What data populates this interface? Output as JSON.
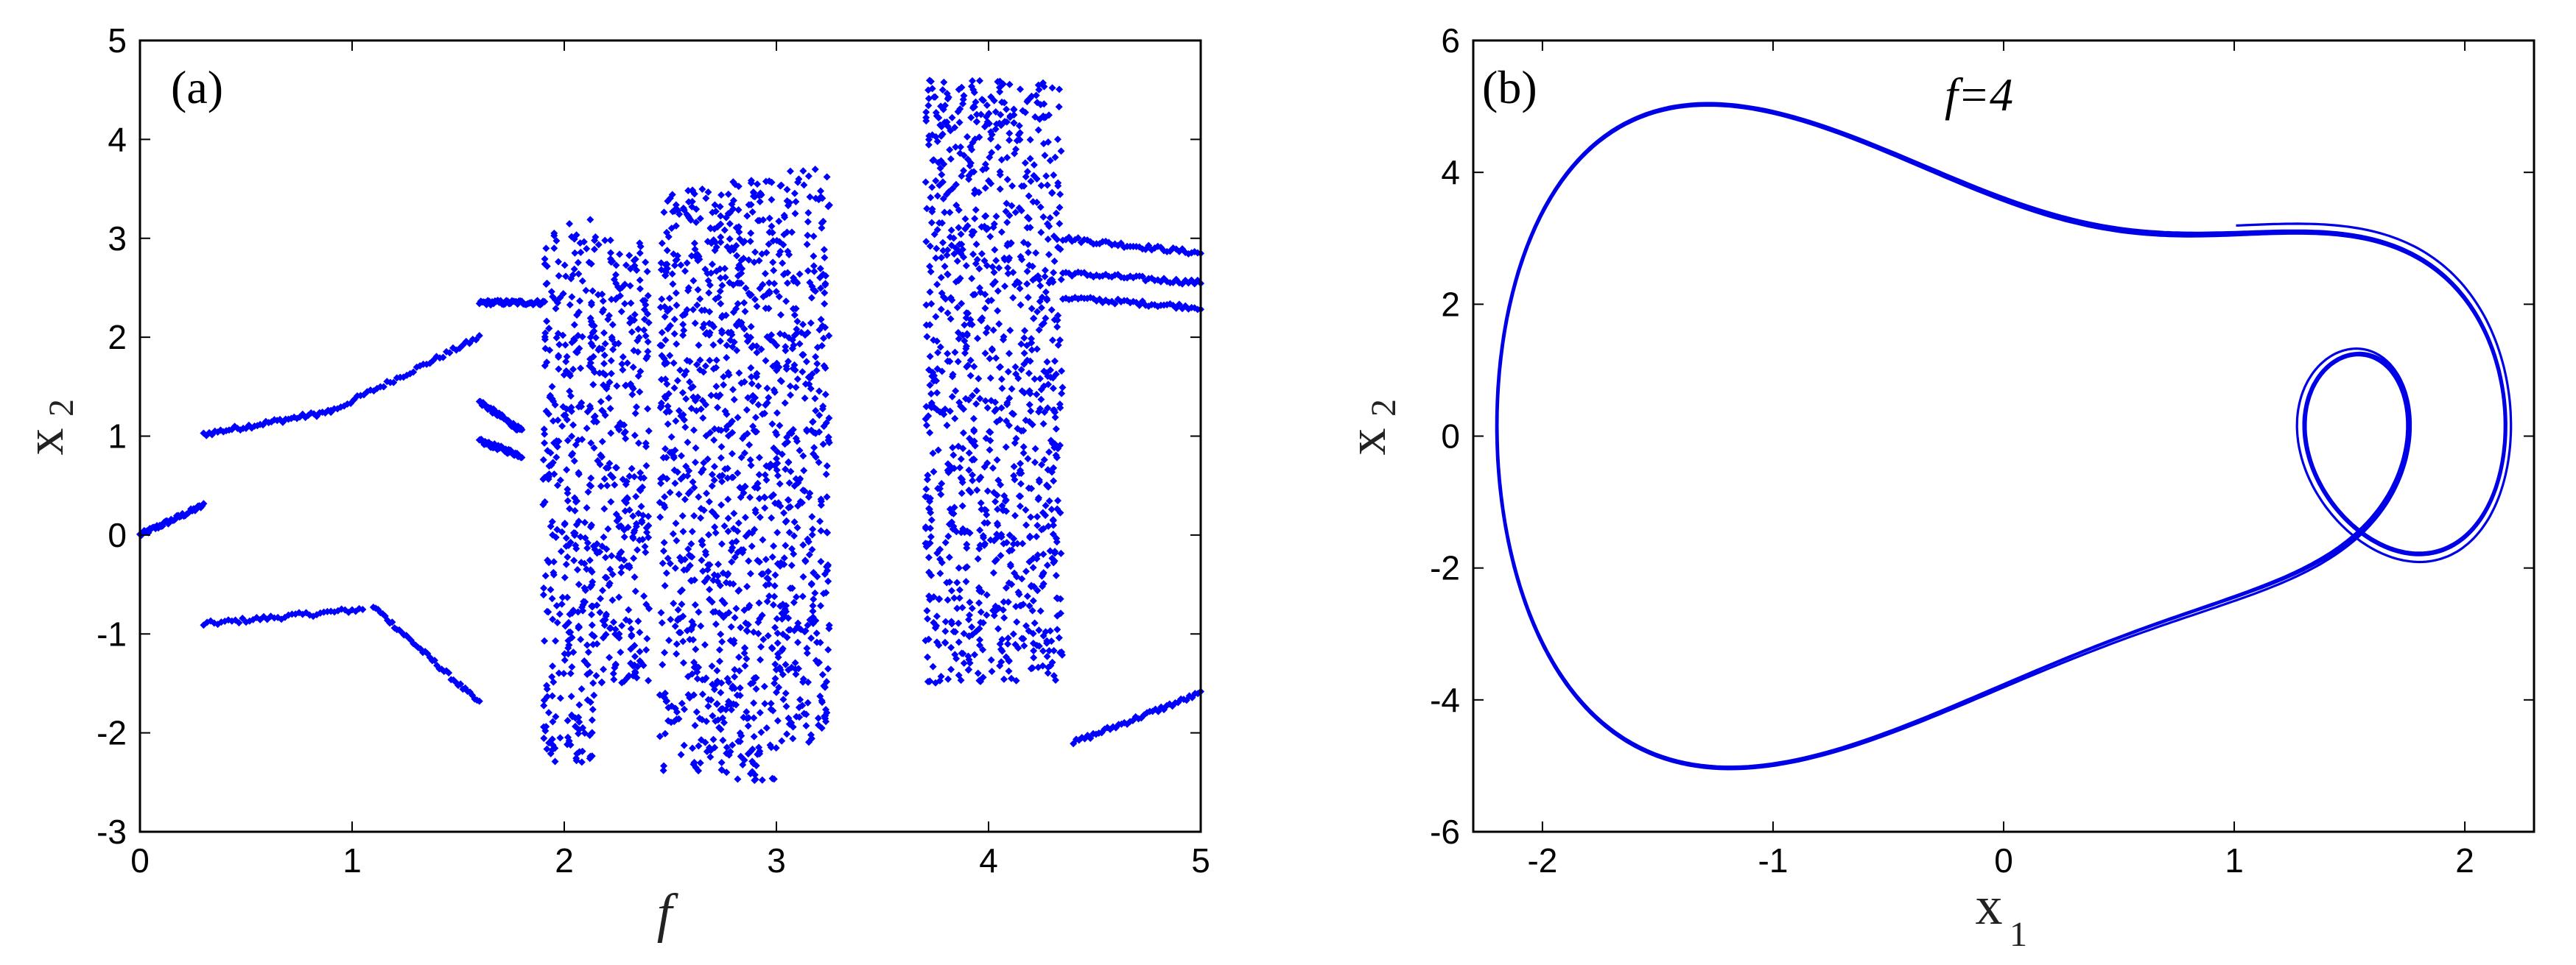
{
  "chart_data": [
    {
      "type": "scatter",
      "panel_label": "(a)",
      "xlabel": "f",
      "ylabel": "x",
      "ylabel_sub": "2",
      "xlim": [
        0,
        5
      ],
      "ylim": [
        -3,
        5
      ],
      "xticks": [
        "0",
        "1",
        "2",
        "3",
        "4",
        "5"
      ],
      "yticks": [
        "-3",
        "-2",
        "-1",
        "0",
        "1",
        "2",
        "3",
        "4",
        "5"
      ],
      "marker_color": "#0000ff",
      "branches": [
        {
          "x": [
            0.0,
            0.3
          ],
          "y": [
            0.0,
            0.3
          ]
        },
        {
          "x": [
            0.3,
            0.9
          ],
          "y": [
            1.02,
            1.25
          ]
        },
        {
          "x": [
            0.3,
            1.05
          ],
          "y": [
            -0.9,
            -0.75
          ]
        },
        {
          "x": [
            0.9,
            1.6
          ],
          "y": [
            1.25,
            2.0
          ]
        },
        {
          "x": [
            1.1,
            1.6
          ],
          "y": [
            -0.72,
            -1.7
          ]
        },
        {
          "x": [
            1.6,
            1.9
          ],
          "y": [
            2.35,
            2.35
          ]
        },
        {
          "x": [
            1.6,
            1.8
          ],
          "y": [
            1.35,
            1.05
          ]
        },
        {
          "x": [
            1.6,
            1.8
          ],
          "y": [
            0.95,
            0.8
          ]
        },
        {
          "x": [
            4.35,
            5.0
          ],
          "y": [
            3.0,
            2.85
          ]
        },
        {
          "x": [
            4.35,
            5.0
          ],
          "y": [
            2.65,
            2.55
          ]
        },
        {
          "x": [
            4.35,
            5.0
          ],
          "y": [
            2.4,
            2.3
          ]
        },
        {
          "x": [
            4.4,
            5.0
          ],
          "y": [
            -2.1,
            -1.6
          ]
        }
      ],
      "chaotic_bands": [
        {
          "x": [
            1.9,
            2.15
          ],
          "y": [
            -2.3,
            3.2
          ]
        },
        {
          "x": [
            2.15,
            2.4
          ],
          "y": [
            -1.5,
            3.0
          ]
        },
        {
          "x": [
            2.45,
            2.75
          ],
          "y": [
            -2.4,
            3.5
          ]
        },
        {
          "x": [
            2.75,
            3.0
          ],
          "y": [
            -2.5,
            3.6
          ]
        },
        {
          "x": [
            3.0,
            3.25
          ],
          "y": [
            -2.1,
            3.7
          ]
        },
        {
          "x": [
            3.7,
            4.35
          ],
          "y": [
            -1.5,
            4.6
          ]
        }
      ]
    },
    {
      "type": "line",
      "panel_label": "(b)",
      "annotation": "f=4",
      "xlabel": "x",
      "xlabel_sub": "1",
      "ylabel": "x",
      "ylabel_sub": "2",
      "xlim": [
        -2.3,
        2.3
      ],
      "ylim": [
        -6,
        6
      ],
      "xticks": [
        "-2",
        "-1",
        "0",
        "1",
        "2"
      ],
      "yticks": [
        "-6",
        "-4",
        "-2",
        "0",
        "2",
        "4",
        "6"
      ],
      "line_color": "#0000e6",
      "x_range": [
        -2.2,
        2.2
      ],
      "y_range": [
        -5.05,
        5.05
      ]
    }
  ]
}
